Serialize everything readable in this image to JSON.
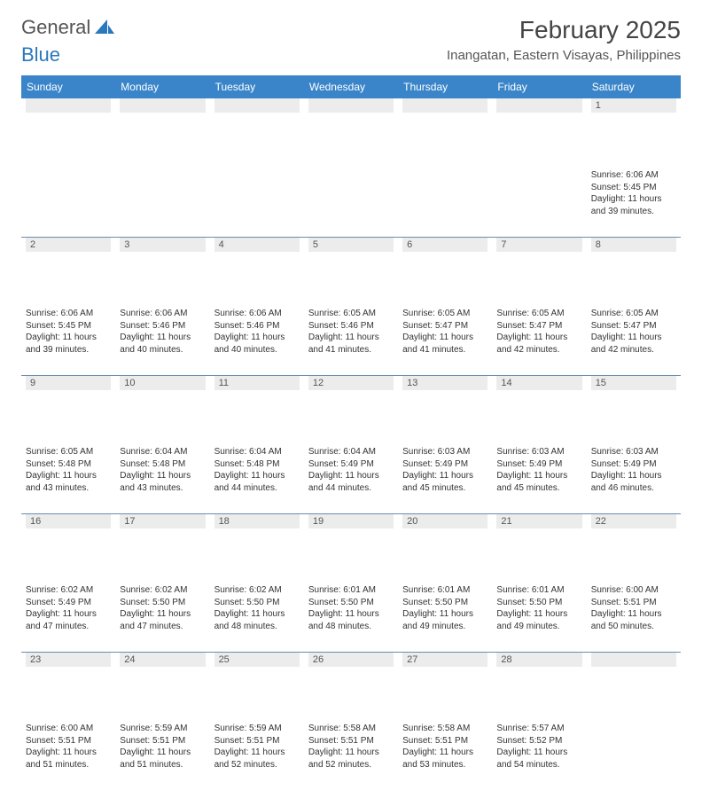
{
  "logo": {
    "text1": "General",
    "text2": "Blue",
    "accent": "#2a78bd"
  },
  "title": "February 2025",
  "location": "Inangatan, Eastern Visayas, Philippines",
  "colors": {
    "header_bg": "#3a85c9",
    "header_fg": "#ffffff",
    "daynum_bg": "#ececec",
    "rule": "#6a8db0",
    "text": "#333333"
  },
  "dayNames": [
    "Sunday",
    "Monday",
    "Tuesday",
    "Wednesday",
    "Thursday",
    "Friday",
    "Saturday"
  ],
  "weeks": [
    [
      null,
      null,
      null,
      null,
      null,
      null,
      {
        "n": "1",
        "sr": "6:06 AM",
        "ss": "5:45 PM",
        "dl": "11 hours and 39 minutes."
      }
    ],
    [
      {
        "n": "2",
        "sr": "6:06 AM",
        "ss": "5:45 PM",
        "dl": "11 hours and 39 minutes."
      },
      {
        "n": "3",
        "sr": "6:06 AM",
        "ss": "5:46 PM",
        "dl": "11 hours and 40 minutes."
      },
      {
        "n": "4",
        "sr": "6:06 AM",
        "ss": "5:46 PM",
        "dl": "11 hours and 40 minutes."
      },
      {
        "n": "5",
        "sr": "6:05 AM",
        "ss": "5:46 PM",
        "dl": "11 hours and 41 minutes."
      },
      {
        "n": "6",
        "sr": "6:05 AM",
        "ss": "5:47 PM",
        "dl": "11 hours and 41 minutes."
      },
      {
        "n": "7",
        "sr": "6:05 AM",
        "ss": "5:47 PM",
        "dl": "11 hours and 42 minutes."
      },
      {
        "n": "8",
        "sr": "6:05 AM",
        "ss": "5:47 PM",
        "dl": "11 hours and 42 minutes."
      }
    ],
    [
      {
        "n": "9",
        "sr": "6:05 AM",
        "ss": "5:48 PM",
        "dl": "11 hours and 43 minutes."
      },
      {
        "n": "10",
        "sr": "6:04 AM",
        "ss": "5:48 PM",
        "dl": "11 hours and 43 minutes."
      },
      {
        "n": "11",
        "sr": "6:04 AM",
        "ss": "5:48 PM",
        "dl": "11 hours and 44 minutes."
      },
      {
        "n": "12",
        "sr": "6:04 AM",
        "ss": "5:49 PM",
        "dl": "11 hours and 44 minutes."
      },
      {
        "n": "13",
        "sr": "6:03 AM",
        "ss": "5:49 PM",
        "dl": "11 hours and 45 minutes."
      },
      {
        "n": "14",
        "sr": "6:03 AM",
        "ss": "5:49 PM",
        "dl": "11 hours and 45 minutes."
      },
      {
        "n": "15",
        "sr": "6:03 AM",
        "ss": "5:49 PM",
        "dl": "11 hours and 46 minutes."
      }
    ],
    [
      {
        "n": "16",
        "sr": "6:02 AM",
        "ss": "5:49 PM",
        "dl": "11 hours and 47 minutes."
      },
      {
        "n": "17",
        "sr": "6:02 AM",
        "ss": "5:50 PM",
        "dl": "11 hours and 47 minutes."
      },
      {
        "n": "18",
        "sr": "6:02 AM",
        "ss": "5:50 PM",
        "dl": "11 hours and 48 minutes."
      },
      {
        "n": "19",
        "sr": "6:01 AM",
        "ss": "5:50 PM",
        "dl": "11 hours and 48 minutes."
      },
      {
        "n": "20",
        "sr": "6:01 AM",
        "ss": "5:50 PM",
        "dl": "11 hours and 49 minutes."
      },
      {
        "n": "21",
        "sr": "6:01 AM",
        "ss": "5:50 PM",
        "dl": "11 hours and 49 minutes."
      },
      {
        "n": "22",
        "sr": "6:00 AM",
        "ss": "5:51 PM",
        "dl": "11 hours and 50 minutes."
      }
    ],
    [
      {
        "n": "23",
        "sr": "6:00 AM",
        "ss": "5:51 PM",
        "dl": "11 hours and 51 minutes."
      },
      {
        "n": "24",
        "sr": "5:59 AM",
        "ss": "5:51 PM",
        "dl": "11 hours and 51 minutes."
      },
      {
        "n": "25",
        "sr": "5:59 AM",
        "ss": "5:51 PM",
        "dl": "11 hours and 52 minutes."
      },
      {
        "n": "26",
        "sr": "5:58 AM",
        "ss": "5:51 PM",
        "dl": "11 hours and 52 minutes."
      },
      {
        "n": "27",
        "sr": "5:58 AM",
        "ss": "5:51 PM",
        "dl": "11 hours and 53 minutes."
      },
      {
        "n": "28",
        "sr": "5:57 AM",
        "ss": "5:52 PM",
        "dl": "11 hours and 54 minutes."
      },
      null
    ]
  ],
  "labels": {
    "sunrise": "Sunrise:",
    "sunset": "Sunset:",
    "daylight": "Daylight:"
  }
}
